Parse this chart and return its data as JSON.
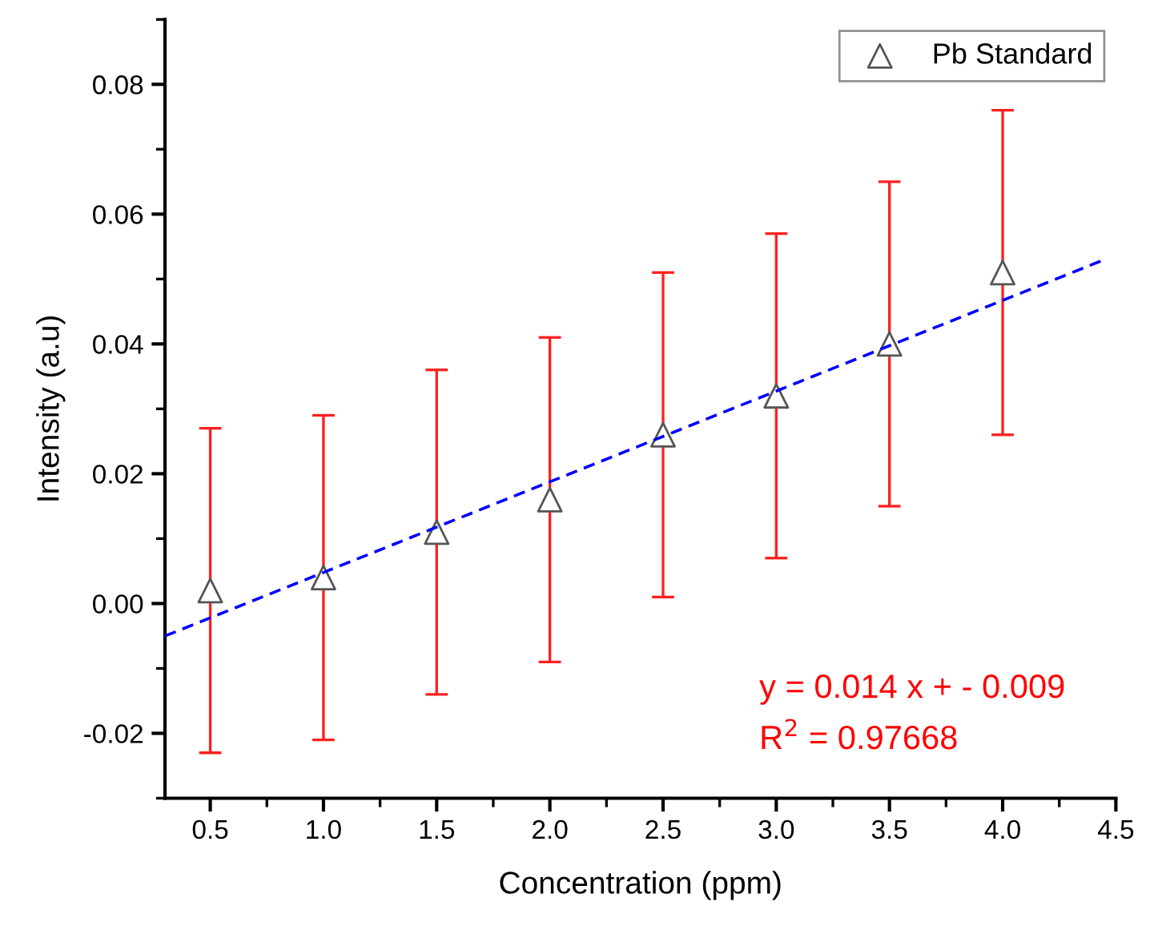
{
  "chart_data": {
    "type": "scatter",
    "xlabel": "Concentration (ppm)",
    "ylabel": "Intensity (a.u)",
    "x": [
      0.5,
      1.0,
      1.5,
      2.0,
      2.5,
      3.0,
      3.5,
      4.0
    ],
    "series": [
      {
        "name": "Pb Standard",
        "color": "#555555",
        "marker": "triangle",
        "values": [
          0.002,
          0.004,
          0.011,
          0.016,
          0.026,
          0.032,
          0.04,
          0.051
        ],
        "errors": [
          0.025,
          0.025,
          0.025,
          0.025,
          0.025,
          0.025,
          0.025,
          0.025
        ]
      },
      {
        "type": "line",
        "color": "#0000ff",
        "line_style": "dashed",
        "x": [
          0.3,
          4.45
        ],
        "values": [
          -0.005,
          0.053
        ]
      }
    ],
    "xlim": [
      0.3,
      4.5
    ],
    "xticks": [
      {
        "value": 0.5,
        "label": "0.5"
      },
      {
        "value": 1.0,
        "label": "1.0"
      },
      {
        "value": 1.5,
        "label": "1.5"
      },
      {
        "value": 2.0,
        "label": "2.0"
      },
      {
        "value": 2.5,
        "label": "2.5"
      },
      {
        "value": 3.0,
        "label": "3.0"
      },
      {
        "value": 3.5,
        "label": "3.5"
      },
      {
        "value": 4.0,
        "label": "4.0"
      },
      {
        "value": 4.5,
        "label": "4.5"
      }
    ],
    "ylim": [
      -0.03,
      0.09
    ],
    "yticks": [
      {
        "value": -0.02,
        "label": "-0.02"
      },
      {
        "value": 0.0,
        "label": "0.00"
      },
      {
        "value": 0.02,
        "label": "0.02"
      },
      {
        "value": 0.04,
        "label": "0.04"
      },
      {
        "value": 0.06,
        "label": "0.06"
      },
      {
        "value": 0.08,
        "label": "0.08"
      }
    ],
    "grid": false,
    "legend": "top right",
    "annotations": [
      "y = 0.014 x + - 0.009",
      "R$^{2}$ = 0.97668"
    ]
  }
}
